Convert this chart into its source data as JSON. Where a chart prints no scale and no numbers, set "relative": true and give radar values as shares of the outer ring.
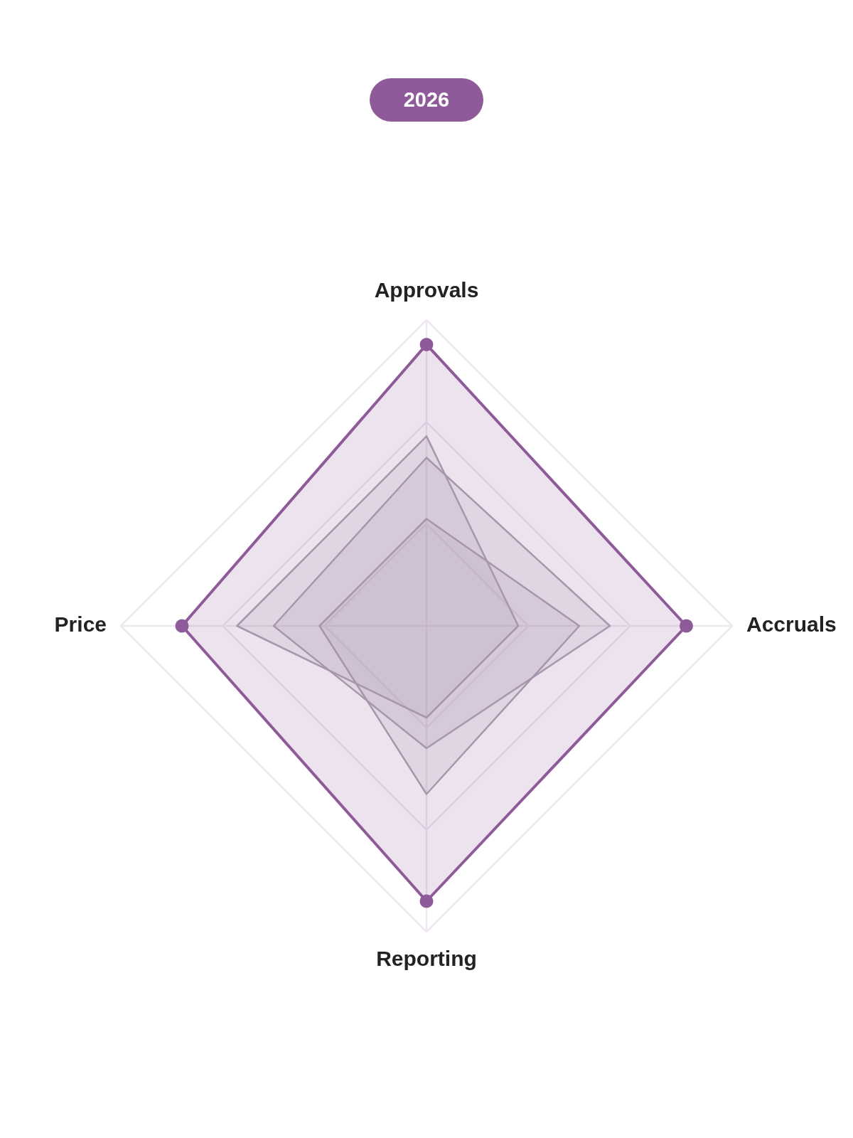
{
  "chart_data": {
    "type": "radar",
    "title": "2026",
    "categories": [
      "Approvals",
      "Accruals",
      "Reporting",
      "Price"
    ],
    "relative": true,
    "grid": true,
    "series": [
      {
        "color": "#8e5a9a",
        "marker": "circle",
        "values": [
          0.92,
          0.85,
          0.9,
          0.8
        ]
      },
      {
        "color": "#aea3b1",
        "values": [
          0.62,
          0.3,
          0.3,
          0.62
        ]
      },
      {
        "color": "#aea3b1",
        "values": [
          0.55,
          0.6,
          0.4,
          0.5
        ]
      },
      {
        "color": "#aea3b1",
        "values": [
          0.35,
          0.5,
          0.55,
          0.35
        ]
      }
    ]
  }
}
